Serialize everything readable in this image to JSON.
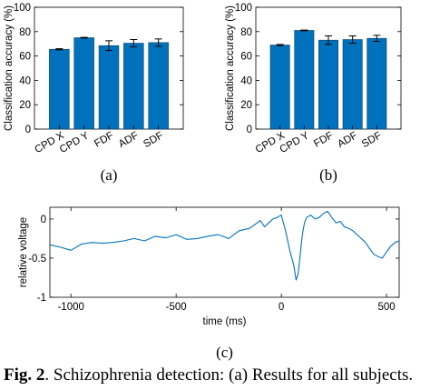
{
  "chart_data": [
    {
      "id": "a",
      "type": "bar",
      "panel_label": "(a)",
      "ylabel": "Classification accuracy (%)",
      "ylim": [
        0,
        100
      ],
      "yticks": [
        0,
        20,
        40,
        60,
        80,
        100
      ],
      "categories": [
        "CPD X",
        "CPD Y",
        "FDF",
        "ADF",
        "SDF"
      ],
      "values": [
        65.5,
        75,
        68.5,
        70.5,
        71
      ],
      "errors": [
        0.5,
        0.3,
        4,
        3,
        3
      ],
      "bar_color": "#0072BD"
    },
    {
      "id": "b",
      "type": "bar",
      "panel_label": "(b)",
      "ylabel": "Classification accuracy (%)",
      "ylim": [
        0,
        100
      ],
      "yticks": [
        0,
        20,
        40,
        60,
        80,
        100
      ],
      "categories": [
        "CPD X",
        "CPD Y",
        "FDF",
        "ADF",
        "SDF"
      ],
      "values": [
        69,
        81,
        73,
        73.5,
        74.5
      ],
      "errors": [
        0.5,
        0.3,
        3.5,
        3,
        2.5
      ],
      "bar_color": "#0072BD"
    },
    {
      "id": "c",
      "type": "line",
      "panel_label": "(c)",
      "xlabel": "time (ms)",
      "ylabel": "relative voltage",
      "xlim": [
        -1100,
        560
      ],
      "ylim": [
        -1,
        0.15
      ],
      "xticks": [
        -1000,
        -500,
        0,
        500
      ],
      "yticks": [
        -1,
        -0.5,
        0
      ],
      "line_color": "#0072BD",
      "x": [
        -1100,
        -1050,
        -1000,
        -950,
        -900,
        -850,
        -800,
        -750,
        -700,
        -650,
        -600,
        -550,
        -500,
        -450,
        -400,
        -350,
        -300,
        -250,
        -200,
        -150,
        -100,
        -80,
        -60,
        -40,
        -20,
        0,
        20,
        40,
        60,
        70,
        80,
        90,
        100,
        110,
        120,
        140,
        160,
        180,
        200,
        220,
        240,
        260,
        280,
        300,
        320,
        340,
        360,
        380,
        400,
        420,
        440,
        460,
        480,
        500,
        520,
        540,
        560
      ],
      "y": [
        -0.33,
        -0.36,
        -0.4,
        -0.32,
        -0.3,
        -0.31,
        -0.3,
        -0.28,
        -0.25,
        -0.28,
        -0.22,
        -0.24,
        -0.2,
        -0.26,
        -0.25,
        -0.22,
        -0.2,
        -0.25,
        -0.15,
        -0.12,
        -0.02,
        -0.1,
        -0.05,
        0.0,
        0.02,
        0.05,
        -0.15,
        -0.4,
        -0.6,
        -0.78,
        -0.7,
        -0.45,
        -0.2,
        -0.05,
        0.02,
        0.05,
        0.0,
        0.02,
        0.07,
        0.1,
        0.02,
        -0.05,
        -0.03,
        -0.1,
        -0.12,
        -0.15,
        -0.2,
        -0.25,
        -0.3,
        -0.38,
        -0.45,
        -0.48,
        -0.5,
        -0.42,
        -0.35,
        -0.3,
        -0.28
      ]
    }
  ],
  "caption": {
    "fig_label": "Fig. 2",
    "text": ". Schizophrenia detection: (a) Results for all subjects."
  }
}
